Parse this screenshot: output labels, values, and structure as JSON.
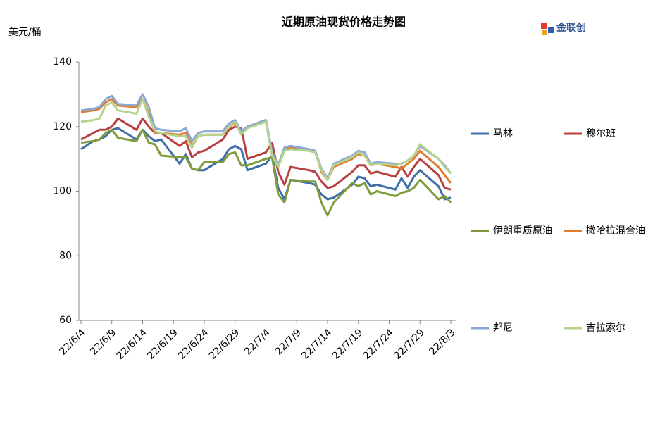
{
  "chart_data": {
    "type": "line",
    "title": "近期原油现货价格走势图",
    "y_label": "美元/桶",
    "logo": "金联创",
    "x": [
      "22/6/4",
      "22/6/6",
      "22/6/7",
      "22/6/8",
      "22/6/9",
      "22/6/10",
      "22/6/13",
      "22/6/14",
      "22/6/15",
      "22/6/16",
      "22/6/17",
      "22/6/20",
      "22/6/21",
      "22/6/22",
      "22/6/23",
      "22/6/24",
      "22/6/27",
      "22/6/28",
      "22/6/29",
      "22/6/30",
      "22/7/1",
      "22/7/4",
      "22/7/5",
      "22/7/6",
      "22/7/7",
      "22/7/8",
      "22/7/11",
      "22/7/12",
      "22/7/13",
      "22/7/14",
      "22/7/15",
      "22/7/18",
      "22/7/19",
      "22/7/20",
      "22/7/21",
      "22/7/22",
      "22/7/25",
      "22/7/26",
      "22/7/27",
      "22/7/28",
      "22/7/29",
      "22/8/1",
      "22/8/2",
      "22/8/3"
    ],
    "xlim": [
      "22/6/4",
      "22/8/3"
    ],
    "xticks": [
      "22/6/4",
      "22/6/9",
      "22/6/14",
      "22/6/19",
      "22/6/24",
      "22/6/29",
      "22/7/4",
      "22/7/9",
      "22/7/14",
      "22/7/19",
      "22/7/24",
      "22/7/29",
      "22/8/3"
    ],
    "ylim": [
      60,
      140
    ],
    "yticks": [
      60,
      80,
      100,
      120,
      140
    ],
    "grid": false,
    "series": [
      {
        "name": "马林",
        "color": "#3f6fa8",
        "values": [
          113,
          115.5,
          116,
          117,
          119,
          119.5,
          116,
          119,
          117,
          115.5,
          116,
          108.5,
          111.5,
          107,
          106.5,
          106.5,
          110,
          113,
          114,
          113,
          106.5,
          108.5,
          111,
          101,
          97.5,
          103.5,
          102.5,
          102,
          99,
          97.5,
          98,
          102,
          104.5,
          104,
          101.5,
          102,
          100.5,
          104,
          101,
          104.5,
          106.5,
          101.5,
          97.5,
          98
        ]
      },
      {
        "name": "穆尔班",
        "color": "#b7403f",
        "values": [
          116,
          118,
          119,
          119,
          120,
          122.5,
          119,
          122.5,
          120,
          118,
          118,
          114,
          115.5,
          110.5,
          112,
          112.5,
          116,
          119,
          120,
          119.5,
          110,
          112,
          115,
          106,
          102,
          107.5,
          106.5,
          106,
          103,
          101,
          101.5,
          106,
          108,
          108,
          105.5,
          106,
          104.5,
          107.5,
          104.5,
          107.5,
          110,
          105,
          101,
          100.5
        ]
      },
      {
        "name": "伊朗重质原油",
        "color": "#7f9c3c",
        "values": [
          115,
          115.5,
          116,
          118,
          119,
          116.5,
          115.5,
          119,
          115,
          114.5,
          111,
          110.5,
          110.5,
          107,
          106.5,
          109,
          109,
          111.5,
          112,
          108,
          108,
          110,
          110.5,
          99,
          96.5,
          103.5,
          103,
          103,
          96.5,
          92.5,
          96.5,
          102.5,
          101.5,
          102.5,
          99,
          100,
          98.5,
          99.5,
          100,
          101,
          103.5,
          97.5,
          98.5,
          96.5
        ]
      },
      {
        "name": "撒哈拉混合油",
        "color": "#e27d2e",
        "values": [
          124.5,
          125,
          125.5,
          127.5,
          128.5,
          126.5,
          126,
          128.5,
          124,
          118,
          118,
          117.5,
          118,
          114,
          117,
          117.5,
          117.5,
          120,
          121,
          118,
          120,
          122,
          112,
          108,
          113,
          113.5,
          113,
          112.5,
          106,
          103.5,
          107.5,
          110,
          111.5,
          111,
          108,
          108.5,
          107.5,
          107,
          108.5,
          110,
          112.5,
          107.5,
          105,
          102.5
        ]
      },
      {
        "name": "邦尼",
        "color": "#8ca7d4",
        "values": [
          125,
          125.5,
          126,
          128.5,
          129.5,
          127,
          126.5,
          130,
          126,
          119.5,
          119,
          118.5,
          119.5,
          115.5,
          118,
          118.5,
          118.5,
          121,
          122,
          118.5,
          120,
          122,
          112,
          108,
          113.5,
          114,
          113,
          112.5,
          107,
          104,
          108.5,
          111,
          112.5,
          112,
          108.5,
          109,
          108.5,
          108.5,
          109.5,
          111,
          114,
          110,
          108,
          105.5
        ]
      },
      {
        "name": "吉拉索尔",
        "color": "#b6d38c",
        "values": [
          121.5,
          122,
          122.5,
          126.5,
          127.5,
          125,
          124,
          128.5,
          123,
          118.5,
          118,
          117,
          117,
          113.5,
          117,
          117.5,
          117.5,
          120,
          121.5,
          117.5,
          119.5,
          121.5,
          111,
          107.5,
          112.5,
          113,
          112.5,
          112,
          106.5,
          103.5,
          108,
          110.5,
          112,
          111,
          108,
          108.5,
          108,
          108.5,
          109.5,
          111,
          114.5,
          110,
          107.5,
          105.5
        ]
      }
    ]
  }
}
